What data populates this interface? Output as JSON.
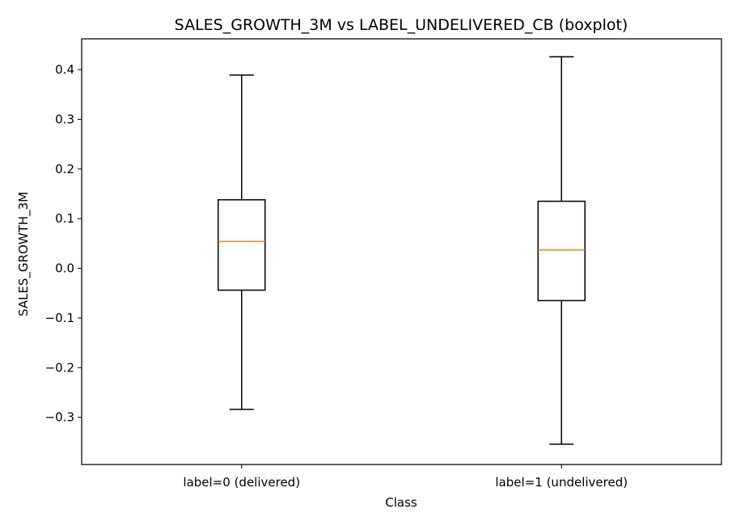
{
  "chart_data": {
    "type": "boxplot",
    "title": "SALES_GROWTH_3M vs LABEL_UNDELIVERED_CB (boxplot)",
    "xlabel": "Class",
    "ylabel": "SALES_GROWTH_3M",
    "ylim": [
      -0.395,
      0.462
    ],
    "yticks": [
      -0.3,
      -0.2,
      -0.1,
      0.0,
      0.1,
      0.2,
      0.3,
      0.4
    ],
    "ytick_labels": [
      "−0.3",
      "−0.2",
      "−0.1",
      "0.0",
      "0.1",
      "0.2",
      "0.3",
      "0.4"
    ],
    "categories": [
      "label=0 (delivered)",
      "label=1 (undelivered)"
    ],
    "boxes": [
      {
        "whisker_low": -0.284,
        "q1": -0.044,
        "median": 0.054,
        "q3": 0.138,
        "whisker_high": 0.389
      },
      {
        "whisker_low": -0.354,
        "q1": -0.065,
        "median": 0.037,
        "q3": 0.135,
        "whisker_high": 0.426
      }
    ],
    "grid": false,
    "colors": {
      "box": "#000000",
      "median": "#ff7f0e"
    }
  }
}
